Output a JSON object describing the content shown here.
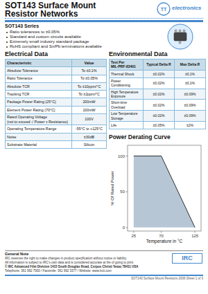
{
  "chart_data": {
    "type": "area",
    "title": "Power Derating Curve",
    "x": [
      25,
      70,
      125
    ],
    "values": [
      100,
      100,
      0
    ],
    "xlim": [
      15,
      135
    ],
    "ylim": [
      -5,
      115
    ],
    "xticks": [
      25,
      70,
      125
    ],
    "yticks": [
      0,
      50,
      100
    ],
    "x_label": "Temperature in °C",
    "y_label": "% Of Rated Power",
    "color": "#aabccc",
    "grid": false
  },
  "page": {
    "title": [
      "SOT143 Surface Mount",
      "Resistor Networks"
    ],
    "logo": [
      "TT",
      "electronics"
    ],
    "series_title": "SOT143 Series",
    "bullets": [
      "Ratio tolerances to ±0.05%",
      "Standard and custom circuits available",
      "Extremely small industry standard package",
      "RoHS compliant and Sn/Pb terminations available"
    ],
    "tables": [
      {
        "title": "Electrical Data",
        "header": [
          "Characteristic",
          "Value"
        ],
        "rows": [
          [
            "Absolute Tolerance",
            "To ±0.1%"
          ],
          [
            "Ratio Tolerance",
            "To ±0.05%"
          ],
          [
            "Absolute TCR",
            "To ±10ppm/°C"
          ],
          [
            "Tracking TCR",
            "To ±2ppm/°C"
          ],
          [
            "Package Power Rating (25°C)",
            "200mW"
          ],
          [
            "Element Power Rating (70°C)",
            "100mW"
          ],
          [
            "Rated Operating Voltage\n(not to exceed √ Power x Resistance)",
            "100V"
          ],
          [
            "Operating Temperature Range",
            "-55°C to +125°C"
          ],
          [
            "Noise",
            "±30dB"
          ],
          [
            "Substrate Material",
            "Silicon"
          ]
        ]
      },
      {
        "title": "Environmental Data",
        "header": [
          "Test Per\nMIL-PRF-83401",
          "Typical Delta R",
          "Max Delta R"
        ],
        "rows": [
          [
            "Thermal Shock",
            "±0.02%",
            "±0.1%"
          ],
          [
            "Power\nConditioning",
            "±0.02%",
            "±0.1%"
          ],
          [
            "High Temperature\nExposure",
            "±0.02%",
            "±0.09%"
          ],
          [
            "Short-time\nOverload",
            "±0.02%",
            "±0.09%"
          ],
          [
            "Low Temperature\nStorage",
            "±0.02%",
            "±0.09%"
          ],
          [
            "Life",
            "±0.05%",
            "±2%"
          ]
        ]
      }
    ],
    "notes": {
      "title": "General Note",
      "lines": [
        "IRC reserves the right to make changes in product specification without notice or liability.",
        "All information is subject to IRC's own data and is considered accurate at the of going to print.",
        "© IRC Advanced Film Division  1415 South Douglas Road, Corpus Christi Texas 78411 USA",
        "Telephone: 361 992 7900 / Facsimile: 361 992 3377 / Website: www.irctt.com"
      ]
    },
    "footer_logo": "IRC",
    "footer_right": "SOT143 Surface Mount Resistors 2006 Sheet 1 of 3"
  }
}
